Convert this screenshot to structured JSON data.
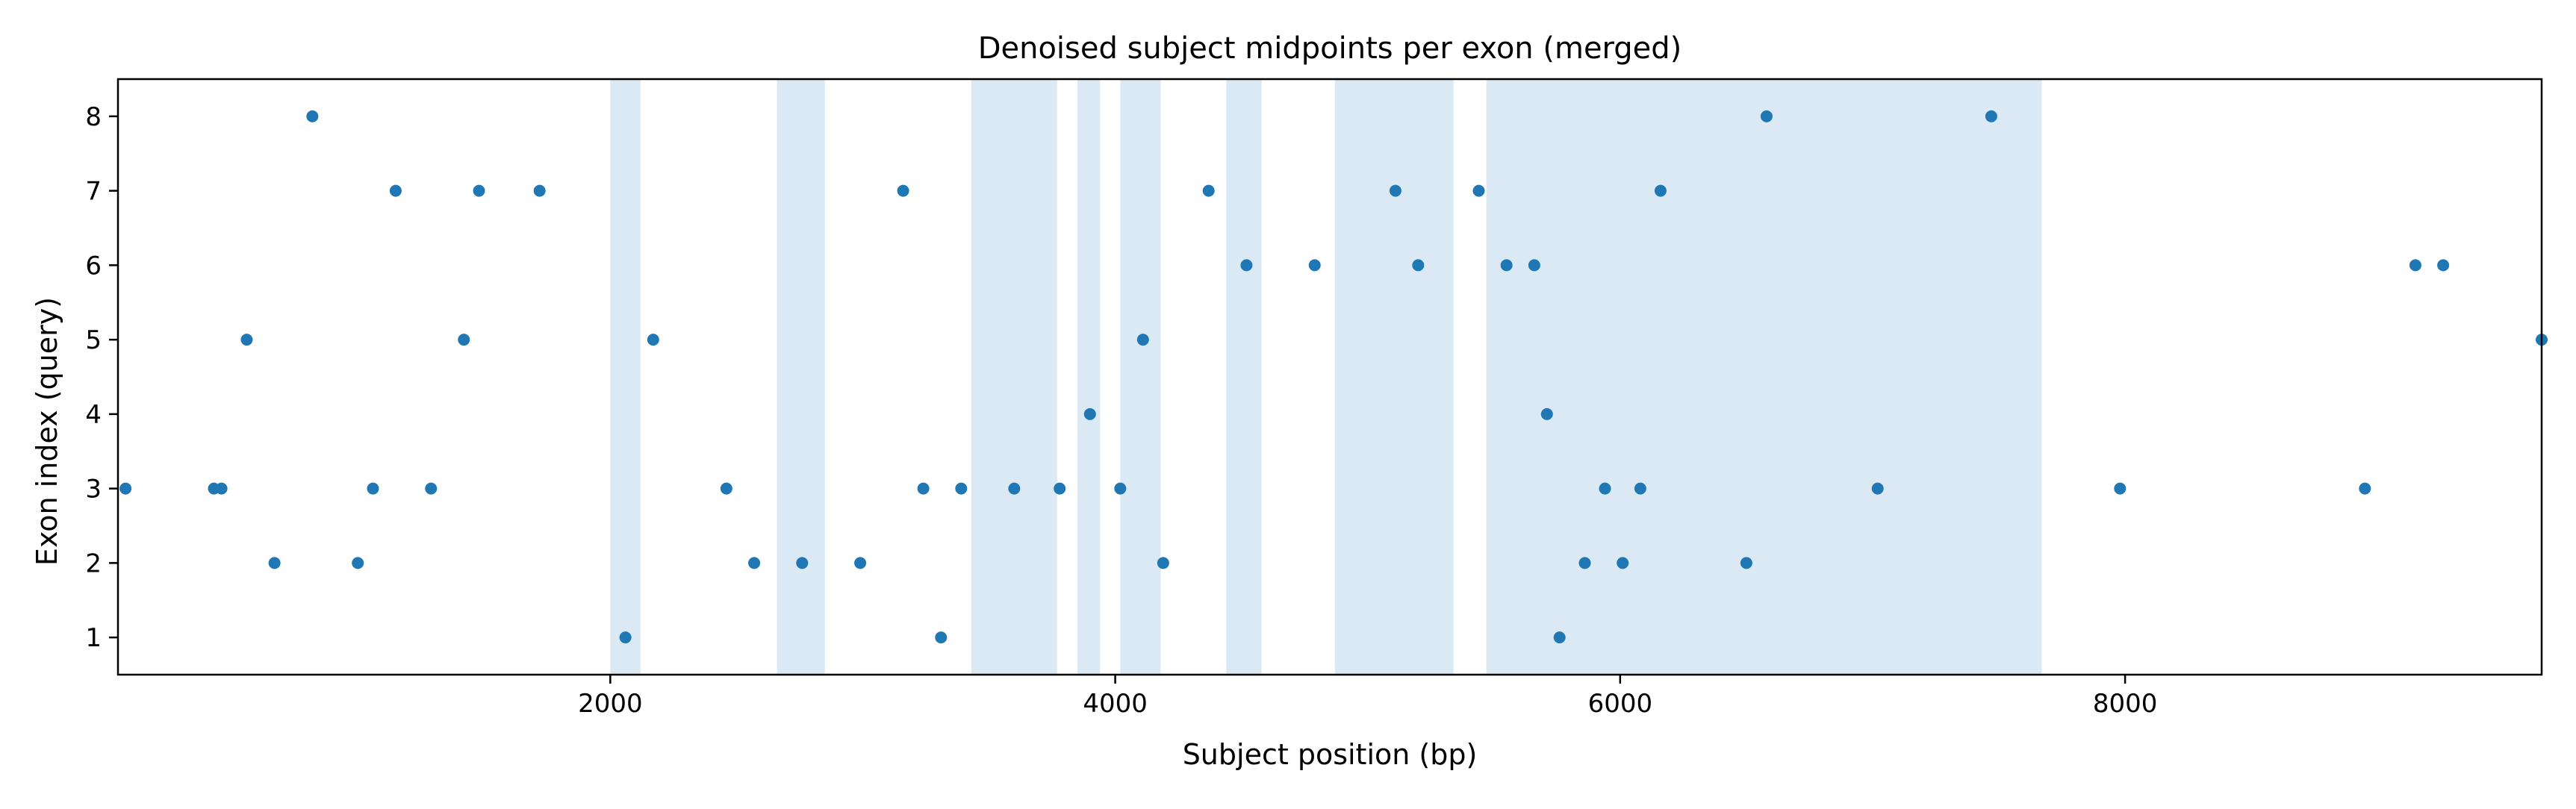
{
  "chart_data": {
    "type": "scatter",
    "title": "Denoised subject midpoints per exon (merged)",
    "xlabel": "Subject position (bp)",
    "ylabel": "Exon index (query)",
    "xlim": [
      50,
      9650
    ],
    "ylim": [
      0.5,
      8.5
    ],
    "x_ticks": [
      2000,
      4000,
      6000,
      8000
    ],
    "x_tick_labels": [
      "2000",
      "4000",
      "6000",
      "8000"
    ],
    "y_ticks": [
      1,
      2,
      3,
      4,
      5,
      6,
      7,
      8
    ],
    "y_tick_labels": [
      "1",
      "2",
      "3",
      "4",
      "5",
      "6",
      "7",
      "8"
    ],
    "grid": false,
    "colors": {
      "points": "#1f77b4",
      "regions": "#dbe9f4"
    },
    "shaded_regions": [
      [
        2000,
        2120
      ],
      [
        2660,
        2850
      ],
      [
        3430,
        3770
      ],
      [
        3850,
        3940
      ],
      [
        4020,
        4180
      ],
      [
        4440,
        4580
      ],
      [
        4870,
        5340
      ],
      [
        5470,
        7670
      ]
    ],
    "points": [
      {
        "x": 80,
        "y": 3
      },
      {
        "x": 430,
        "y": 3
      },
      {
        "x": 460,
        "y": 3
      },
      {
        "x": 560,
        "y": 5
      },
      {
        "x": 670,
        "y": 2
      },
      {
        "x": 820,
        "y": 8
      },
      {
        "x": 1000,
        "y": 2
      },
      {
        "x": 1060,
        "y": 3
      },
      {
        "x": 1150,
        "y": 7
      },
      {
        "x": 1290,
        "y": 3
      },
      {
        "x": 1420,
        "y": 5
      },
      {
        "x": 1480,
        "y": 7
      },
      {
        "x": 1720,
        "y": 7
      },
      {
        "x": 2060,
        "y": 1
      },
      {
        "x": 2170,
        "y": 5
      },
      {
        "x": 2460,
        "y": 3
      },
      {
        "x": 2570,
        "y": 2
      },
      {
        "x": 2760,
        "y": 2
      },
      {
        "x": 2990,
        "y": 2
      },
      {
        "x": 3160,
        "y": 7
      },
      {
        "x": 3240,
        "y": 3
      },
      {
        "x": 3310,
        "y": 1
      },
      {
        "x": 3390,
        "y": 3
      },
      {
        "x": 3600,
        "y": 3
      },
      {
        "x": 3780,
        "y": 3
      },
      {
        "x": 3900,
        "y": 4
      },
      {
        "x": 4020,
        "y": 3
      },
      {
        "x": 4110,
        "y": 5
      },
      {
        "x": 4190,
        "y": 2
      },
      {
        "x": 4370,
        "y": 7
      },
      {
        "x": 4520,
        "y": 6
      },
      {
        "x": 4790,
        "y": 6
      },
      {
        "x": 5110,
        "y": 7
      },
      {
        "x": 5200,
        "y": 6
      },
      {
        "x": 5440,
        "y": 7
      },
      {
        "x": 5550,
        "y": 6
      },
      {
        "x": 5660,
        "y": 6
      },
      {
        "x": 5710,
        "y": 4
      },
      {
        "x": 5760,
        "y": 1
      },
      {
        "x": 5860,
        "y": 2
      },
      {
        "x": 5940,
        "y": 3
      },
      {
        "x": 6010,
        "y": 2
      },
      {
        "x": 6080,
        "y": 3
      },
      {
        "x": 6160,
        "y": 7
      },
      {
        "x": 6500,
        "y": 2
      },
      {
        "x": 6580,
        "y": 8
      },
      {
        "x": 7020,
        "y": 3
      },
      {
        "x": 7470,
        "y": 8
      },
      {
        "x": 7980,
        "y": 3
      },
      {
        "x": 8950,
        "y": 3
      },
      {
        "x": 9150,
        "y": 6
      },
      {
        "x": 9260,
        "y": 6
      },
      {
        "x": 9650,
        "y": 5
      }
    ]
  }
}
